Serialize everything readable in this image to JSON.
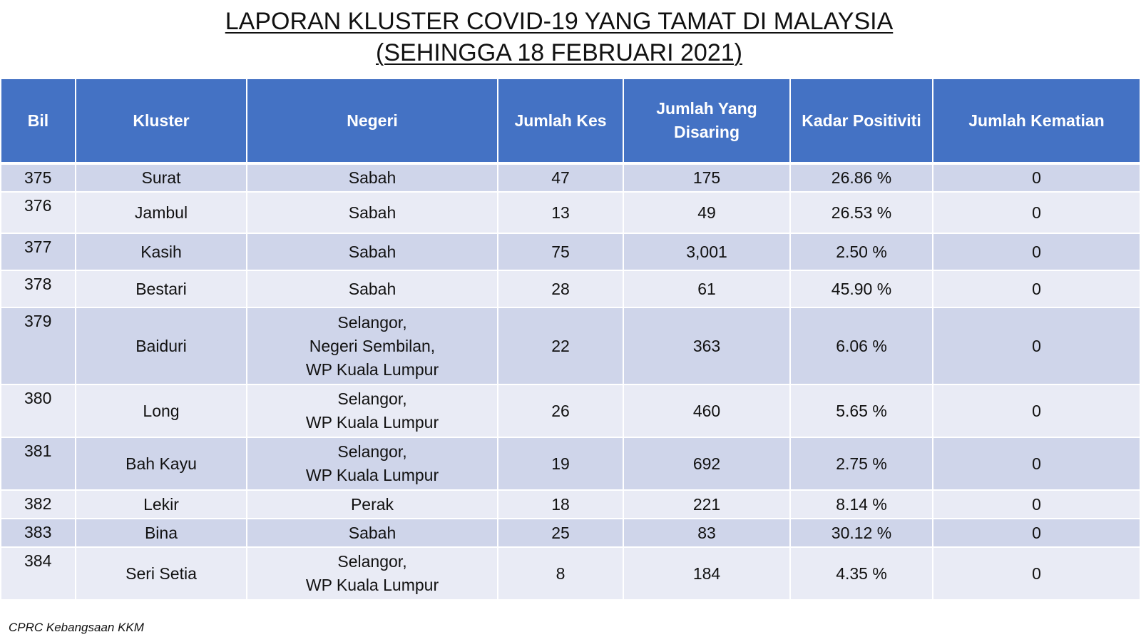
{
  "title": {
    "line1": "LAPORAN KLUSTER COVID-19 YANG TAMAT DI MALAYSIA",
    "line2": "(SEHINGGA 18 FEBRUARI 2021)"
  },
  "table": {
    "headers": {
      "bil": "Bil",
      "kluster": "Kluster",
      "negeri": "Negeri",
      "jumlah_kes": "Jumlah Kes",
      "jumlah_disaring_1": "Jumlah Yang",
      "jumlah_disaring_2": "Disaring",
      "kadar_positiviti": "Kadar Positiviti",
      "jumlah_kematian": "Jumlah Kematian"
    },
    "rows": [
      {
        "bil": "375",
        "kluster": "Surat",
        "negeri": [
          "Sabah"
        ],
        "kes": "47",
        "disaring": "175",
        "positiviti": "26.86 %",
        "kematian": "0"
      },
      {
        "bil": "376",
        "kluster": "Jambul",
        "negeri": [
          "Sabah"
        ],
        "kes": "13",
        "disaring": "49",
        "positiviti": "26.53 %",
        "kematian": "0"
      },
      {
        "bil": "377",
        "kluster": "Kasih",
        "negeri": [
          "Sabah"
        ],
        "kes": "75",
        "disaring": "3,001",
        "positiviti": "2.50 %",
        "kematian": "0"
      },
      {
        "bil": "378",
        "kluster": "Bestari",
        "negeri": [
          "Sabah"
        ],
        "kes": "28",
        "disaring": "61",
        "positiviti": "45.90 %",
        "kematian": "0"
      },
      {
        "bil": "379",
        "kluster": "Baiduri",
        "negeri": [
          "Selangor,",
          "Negeri Sembilan,",
          "WP Kuala Lumpur"
        ],
        "kes": "22",
        "disaring": "363",
        "positiviti": "6.06 %",
        "kematian": "0"
      },
      {
        "bil": "380",
        "kluster": "Long",
        "negeri": [
          "Selangor,",
          "WP Kuala Lumpur"
        ],
        "kes": "26",
        "disaring": "460",
        "positiviti": "5.65 %",
        "kematian": "0"
      },
      {
        "bil": "381",
        "kluster": "Bah Kayu",
        "negeri": [
          "Selangor,",
          "WP Kuala Lumpur"
        ],
        "kes": "19",
        "disaring": "692",
        "positiviti": "2.75 %",
        "kematian": "0"
      },
      {
        "bil": "382",
        "kluster": "Lekir",
        "negeri": [
          "Perak"
        ],
        "kes": "18",
        "disaring": "221",
        "positiviti": "8.14 %",
        "kematian": "0"
      },
      {
        "bil": "383",
        "kluster": "Bina",
        "negeri": [
          "Sabah"
        ],
        "kes": "25",
        "disaring": "83",
        "positiviti": "30.12 %",
        "kematian": "0"
      },
      {
        "bil": "384",
        "kluster": "Seri Setia",
        "negeri": [
          "Selangor,",
          "WP Kuala Lumpur"
        ],
        "kes": "8",
        "disaring": "184",
        "positiviti": "4.35 %",
        "kematian": "0"
      }
    ]
  },
  "footer": {
    "source": "CPRC Kebangsaan KKM"
  }
}
